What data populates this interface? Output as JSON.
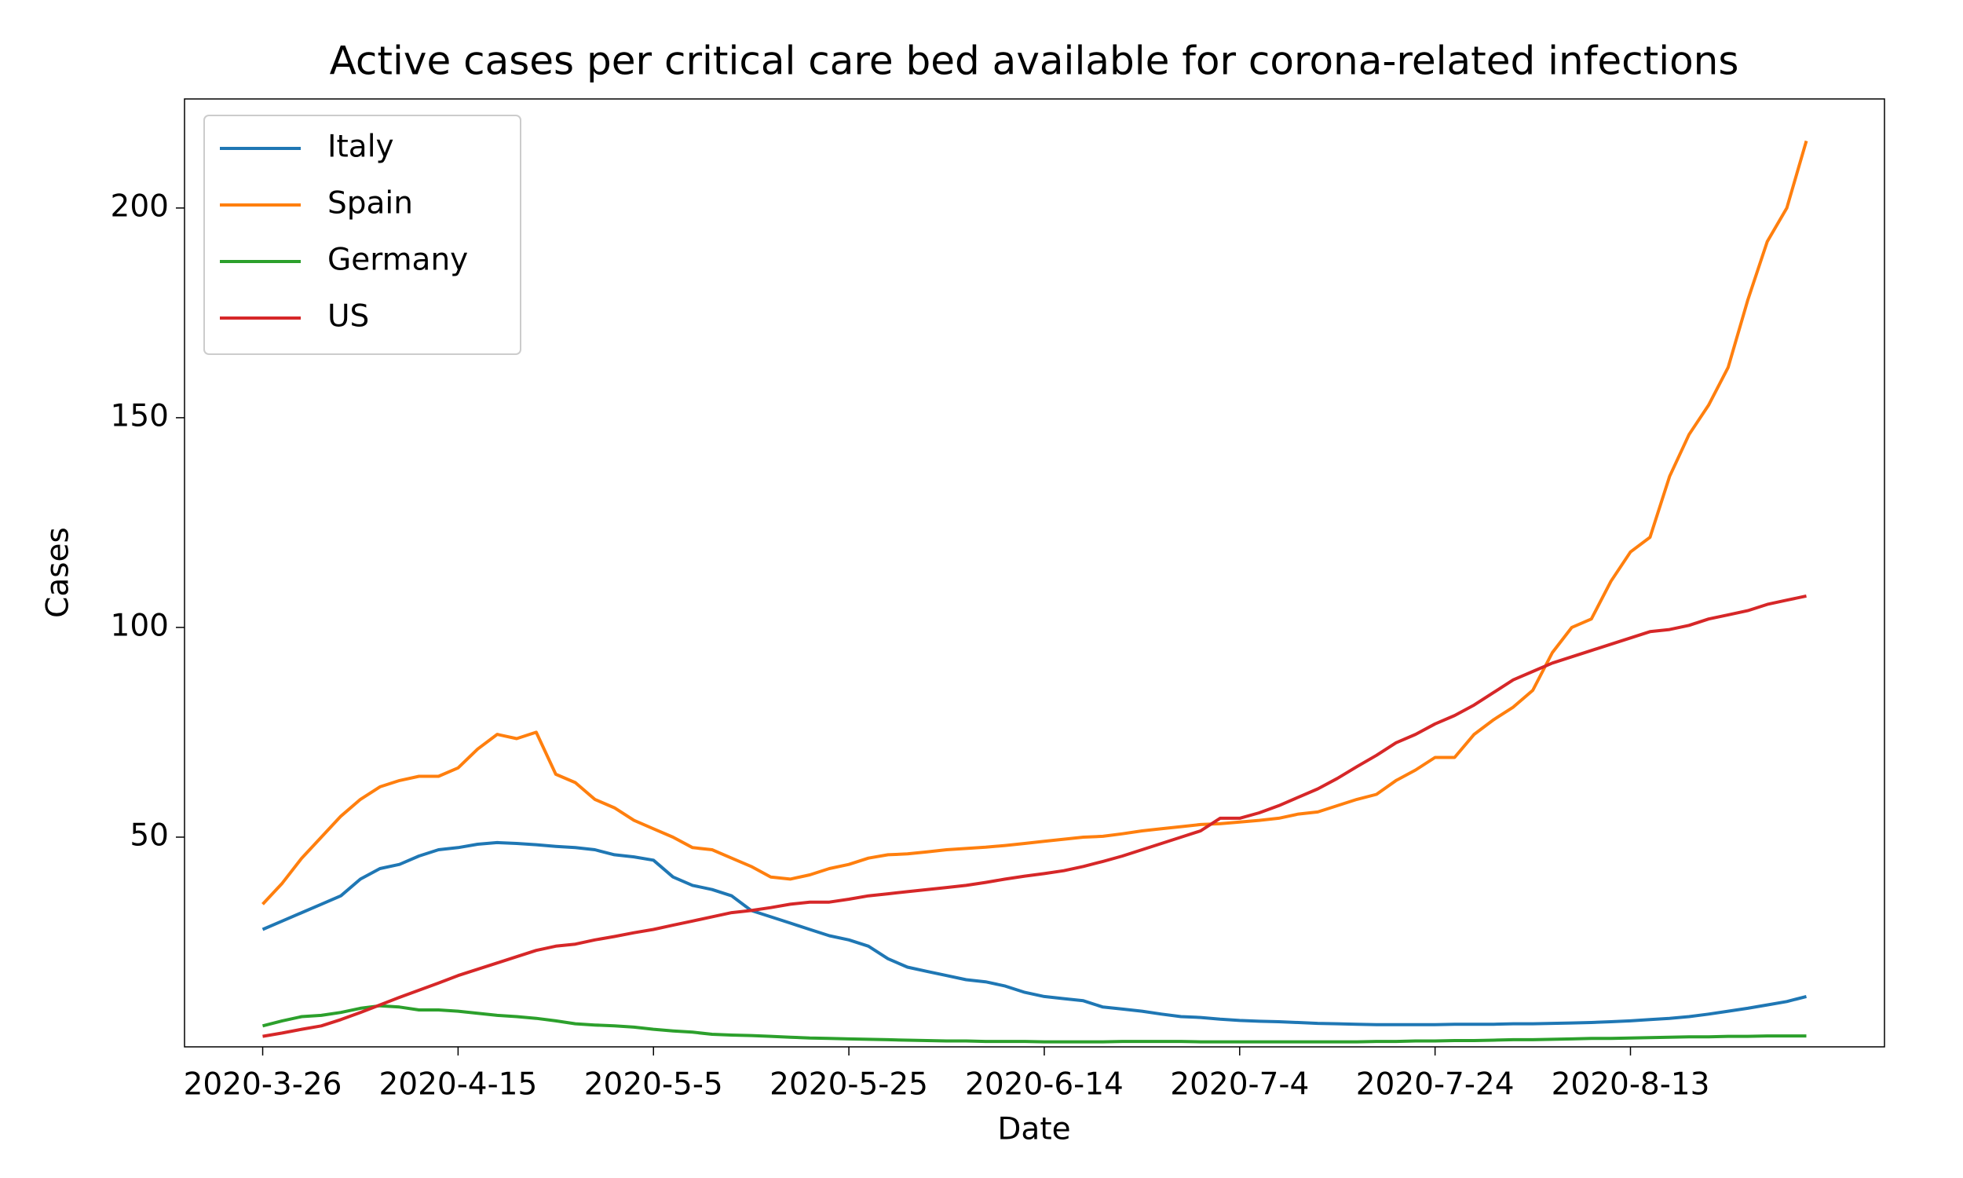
{
  "chart_data": {
    "type": "line",
    "title": "Active cases per critical care bed available for corona-related infections",
    "x_label": "Date",
    "y_label": "Cases",
    "x": [
      "2020-3-26",
      "2020-3-28",
      "2020-3-30",
      "2020-4-1",
      "2020-4-3",
      "2020-4-5",
      "2020-4-7",
      "2020-4-9",
      "2020-4-11",
      "2020-4-13",
      "2020-4-15",
      "2020-4-17",
      "2020-4-19",
      "2020-4-21",
      "2020-4-23",
      "2020-4-25",
      "2020-4-27",
      "2020-4-29",
      "2020-5-1",
      "2020-5-3",
      "2020-5-5",
      "2020-5-7",
      "2020-5-9",
      "2020-5-11",
      "2020-5-13",
      "2020-5-15",
      "2020-5-17",
      "2020-5-19",
      "2020-5-21",
      "2020-5-23",
      "2020-5-25",
      "2020-5-27",
      "2020-5-29",
      "2020-5-31",
      "2020-6-2",
      "2020-6-4",
      "2020-6-6",
      "2020-6-8",
      "2020-6-10",
      "2020-6-12",
      "2020-6-14",
      "2020-6-16",
      "2020-6-18",
      "2020-6-20",
      "2020-6-22",
      "2020-6-24",
      "2020-6-26",
      "2020-6-28",
      "2020-6-30",
      "2020-7-2",
      "2020-7-4",
      "2020-7-6",
      "2020-7-8",
      "2020-7-10",
      "2020-7-12",
      "2020-7-14",
      "2020-7-16",
      "2020-7-18",
      "2020-7-20",
      "2020-7-22",
      "2020-7-24",
      "2020-7-26",
      "2020-7-28",
      "2020-7-30",
      "2020-8-1",
      "2020-8-3",
      "2020-8-5",
      "2020-8-7",
      "2020-8-9",
      "2020-8-11",
      "2020-8-13",
      "2020-8-15",
      "2020-8-17",
      "2020-8-19",
      "2020-8-21",
      "2020-8-23",
      "2020-8-25",
      "2020-8-27",
      "2020-8-29",
      "2020-8-31"
    ],
    "series": [
      {
        "name": "Italy",
        "color": "#1f77b4",
        "values": [
          28,
          30,
          32,
          34,
          36,
          40,
          42.5,
          43.5,
          45.5,
          47,
          47.5,
          48.3,
          48.7,
          48.5,
          48.2,
          47.8,
          47.5,
          47,
          45.8,
          45.3,
          44.5,
          40.5,
          38.5,
          37.5,
          36,
          32.5,
          31,
          29.5,
          28,
          26.5,
          25.5,
          24,
          21,
          19,
          18,
          17,
          16,
          15.5,
          14.5,
          13,
          12,
          11.5,
          11,
          9.5,
          9,
          8.5,
          7.8,
          7.2,
          7,
          6.6,
          6.3,
          6.1,
          6,
          5.8,
          5.6,
          5.5,
          5.4,
          5.3,
          5.3,
          5.3,
          5.3,
          5.4,
          5.4,
          5.4,
          5.5,
          5.5,
          5.6,
          5.7,
          5.8,
          6,
          6.2,
          6.5,
          6.8,
          7.2,
          7.8,
          8.5,
          9.2,
          10,
          10.8,
          12
        ]
      },
      {
        "name": "Spain",
        "color": "#ff7f0e",
        "values": [
          34,
          39,
          45,
          50,
          55,
          59,
          62,
          63.5,
          64.5,
          64.5,
          66.5,
          71,
          74.5,
          73.5,
          75,
          65,
          63,
          59,
          57,
          54,
          52,
          50,
          47.5,
          47,
          45,
          43,
          40.5,
          40,
          41,
          42.5,
          43.5,
          45,
          45.8,
          46,
          46.5,
          47,
          47.3,
          47.6,
          48,
          48.5,
          49,
          49.5,
          50,
          50.2,
          50.8,
          51.5,
          52,
          52.5,
          53,
          53.2,
          53.6,
          54,
          54.5,
          55.5,
          56,
          57.5,
          59,
          60.2,
          63.5,
          66,
          69,
          69,
          74.5,
          78,
          81,
          85,
          94,
          100,
          102,
          111,
          118,
          121.5,
          136,
          146,
          153,
          162,
          178,
          192,
          200,
          216
        ]
      },
      {
        "name": "Germany",
        "color": "#2ca02c",
        "values": [
          5,
          6.2,
          7.2,
          7.5,
          8.2,
          9.2,
          9.8,
          9.5,
          8.8,
          8.8,
          8.5,
          8,
          7.5,
          7.2,
          6.8,
          6.2,
          5.5,
          5.2,
          5,
          4.7,
          4.2,
          3.8,
          3.5,
          3,
          2.8,
          2.7,
          2.5,
          2.3,
          2.1,
          2,
          1.9,
          1.8,
          1.7,
          1.6,
          1.5,
          1.4,
          1.4,
          1.3,
          1.3,
          1.3,
          1.2,
          1.2,
          1.2,
          1.2,
          1.3,
          1.3,
          1.3,
          1.3,
          1.2,
          1.2,
          1.2,
          1.2,
          1.2,
          1.2,
          1.2,
          1.2,
          1.2,
          1.3,
          1.3,
          1.4,
          1.4,
          1.5,
          1.5,
          1.6,
          1.7,
          1.7,
          1.8,
          1.9,
          2,
          2,
          2.1,
          2.2,
          2.3,
          2.4,
          2.4,
          2.5,
          2.5,
          2.6,
          2.6,
          2.6
        ]
      },
      {
        "name": "US",
        "color": "#d62728",
        "values": [
          2.5,
          3.3,
          4.2,
          5,
          6.5,
          8.2,
          10,
          11.8,
          13.5,
          15.2,
          17,
          18.5,
          20,
          21.5,
          23,
          24,
          24.5,
          25.5,
          26.3,
          27.2,
          28,
          29,
          30,
          31,
          32,
          32.5,
          33.2,
          34,
          34.5,
          34.5,
          35.2,
          36,
          36.5,
          37,
          37.5,
          38,
          38.5,
          39.2,
          40,
          40.7,
          41.3,
          42,
          43,
          44.2,
          45.5,
          47,
          48.5,
          50,
          51.5,
          54.5,
          54.5,
          55.8,
          57.5,
          59.5,
          61.5,
          64,
          66.8,
          69.5,
          72.5,
          74.5,
          77,
          79,
          81.5,
          84.5,
          87.5,
          89.5,
          91.5,
          93,
          94.5,
          96,
          97.5,
          99,
          99.5,
          100.5,
          102,
          103,
          104,
          105.5,
          106.5,
          107.5
        ]
      }
    ],
    "xlim": [
      "2020-3-18",
      "2020-9-8"
    ],
    "xticks": [
      "2020-3-26",
      "2020-4-15",
      "2020-5-5",
      "2020-5-25",
      "2020-6-14",
      "2020-7-4",
      "2020-7-24",
      "2020-8-13"
    ],
    "ylim": [
      0,
      226
    ],
    "yticks": [
      50,
      100,
      150,
      200
    ],
    "grid": false,
    "legend": "upper left"
  }
}
